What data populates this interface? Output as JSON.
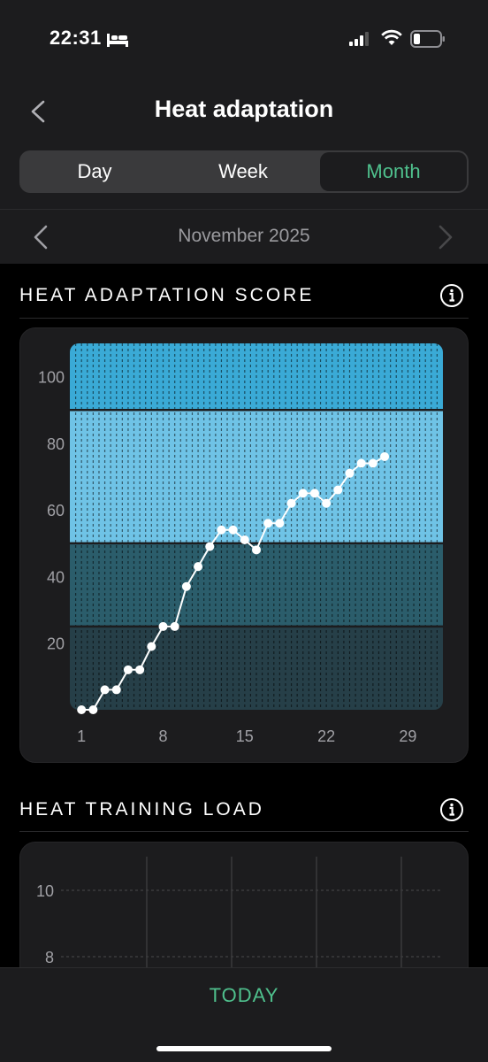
{
  "status_bar": {
    "time": "22:31"
  },
  "header": {
    "title": "Heat adaptation"
  },
  "tabs": [
    {
      "label": "Day"
    },
    {
      "label": "Week"
    },
    {
      "label": "Month"
    }
  ],
  "selected_tab": "Month",
  "month_nav": {
    "label": "November 2025"
  },
  "sections": {
    "score_title": "HEAT ADAPTATION SCORE",
    "load_title": "HEAT TRAINING LOAD"
  },
  "footer": {
    "today_label": "TODAY"
  },
  "colors": {
    "accent": "#4fc08d",
    "zone_top": "#3aaad6",
    "zone_high": "#6fc3e6",
    "zone_mid": "#2b5d6b",
    "zone_low": "#263f48"
  },
  "chart_data": [
    {
      "type": "line",
      "title": "HEAT ADAPTATION SCORE",
      "x_ticks": [
        "1",
        "8",
        "15",
        "22",
        "29"
      ],
      "y_ticks": [
        "20",
        "40",
        "60",
        "80",
        "100"
      ],
      "xlim": [
        0,
        32
      ],
      "ylim": [
        0,
        110
      ],
      "zones": [
        {
          "from": 0,
          "to": 25
        },
        {
          "from": 25,
          "to": 50
        },
        {
          "from": 50,
          "to": 90
        },
        {
          "from": 90,
          "to": 110
        }
      ],
      "x": [
        1,
        2,
        3,
        4,
        5,
        6,
        7,
        8,
        9,
        10,
        11,
        12,
        13,
        14,
        15,
        16,
        17,
        18,
        19,
        20,
        21,
        22,
        23,
        24,
        25,
        26,
        27
      ],
      "y": [
        0,
        0,
        6,
        6,
        12,
        12,
        19,
        25,
        25,
        37,
        43,
        49,
        54,
        54,
        51,
        48,
        56,
        56,
        62,
        65,
        65,
        62,
        66,
        71,
        74,
        74,
        76
      ]
    },
    {
      "type": "bar",
      "title": "HEAT TRAINING LOAD",
      "y_ticks": [
        "8",
        "10"
      ],
      "series": []
    }
  ]
}
